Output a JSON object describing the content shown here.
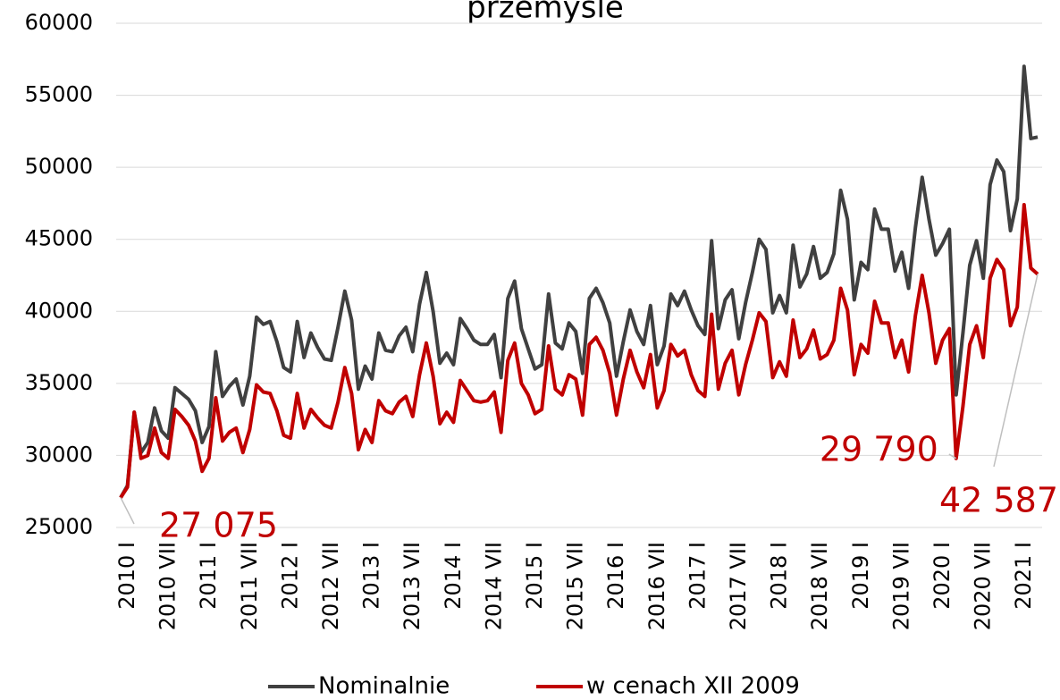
{
  "chart_data": {
    "type": "line",
    "title": "przemyśle",
    "categories": [
      "2010 I",
      null,
      null,
      null,
      null,
      null,
      "2010 VII",
      null,
      null,
      null,
      null,
      null,
      "2011 I",
      null,
      null,
      null,
      null,
      null,
      "2011 VII",
      null,
      null,
      null,
      null,
      null,
      "2012 I",
      null,
      null,
      null,
      null,
      null,
      "2012 VII",
      null,
      null,
      null,
      null,
      null,
      "2013 I",
      null,
      null,
      null,
      null,
      null,
      "2013 VII",
      null,
      null,
      null,
      null,
      null,
      "2014 I",
      null,
      null,
      null,
      null,
      null,
      "2014 VII",
      null,
      null,
      null,
      null,
      null,
      "2015 I",
      null,
      null,
      null,
      null,
      null,
      "2015 VII",
      null,
      null,
      null,
      null,
      null,
      "2016 I",
      null,
      null,
      null,
      null,
      null,
      "2016 VII",
      null,
      null,
      null,
      null,
      null,
      "2017 I",
      null,
      null,
      null,
      null,
      null,
      "2017 VII",
      null,
      null,
      null,
      null,
      null,
      "2018 I",
      null,
      null,
      null,
      null,
      null,
      "2018 VII",
      null,
      null,
      null,
      null,
      null,
      "2019 I",
      null,
      null,
      null,
      null,
      null,
      "2019 VII",
      null,
      null,
      null,
      null,
      null,
      "2020 I",
      null,
      null,
      null,
      null,
      null,
      "2020 VII",
      null,
      null,
      null,
      null,
      null,
      "2021 I",
      null,
      null,
      null
    ],
    "series": [
      {
        "name": "Nominalnie",
        "color": "#404040",
        "values": [
          27075,
          27900,
          33000,
          30200,
          30900,
          33300,
          31700,
          31200,
          34700,
          34300,
          33900,
          33100,
          30900,
          32000,
          37200,
          34100,
          34800,
          35300,
          33500,
          35500,
          39600,
          39100,
          39300,
          37900,
          36100,
          35800,
          39300,
          36800,
          38500,
          37500,
          36700,
          36600,
          38900,
          41400,
          39400,
          34600,
          36200,
          35300,
          38500,
          37300,
          37200,
          38300,
          38900,
          37200,
          40500,
          42700,
          40000,
          36400,
          37100,
          36300,
          39500,
          38800,
          38000,
          37700,
          37700,
          38400,
          35400,
          40900,
          42100,
          38800,
          37400,
          36000,
          36300,
          41200,
          37800,
          37400,
          39200,
          38600,
          35700,
          40900,
          41600,
          40600,
          39200,
          35500,
          37900,
          40100,
          38600,
          37700,
          40400,
          36300,
          37600,
          41200,
          40400,
          41400,
          40100,
          39000,
          38400,
          44900,
          38800,
          40800,
          41500,
          38100,
          40600,
          42700,
          45000,
          44300,
          39900,
          41100,
          39900,
          44600,
          41700,
          42600,
          44500,
          42300,
          42700,
          44000,
          48400,
          46400,
          40800,
          43400,
          42900,
          47100,
          45700,
          45700,
          42800,
          44100,
          41600,
          45800,
          49300,
          46400,
          43900,
          44700,
          45700,
          34200,
          38500,
          43200,
          44900,
          42300,
          48800,
          50500,
          49700,
          45600,
          47800,
          57000,
          52000,
          52100
        ]
      },
      {
        "name": "w cenach XII 2009",
        "color": "#c00000",
        "values": [
          27075,
          27800,
          33000,
          29800,
          30000,
          31900,
          30200,
          29800,
          33200,
          32700,
          32100,
          31000,
          28900,
          29800,
          34000,
          31000,
          31600,
          31900,
          30200,
          31800,
          34900,
          34400,
          34300,
          33100,
          31400,
          31200,
          34300,
          31900,
          33200,
          32600,
          32100,
          31900,
          33700,
          36100,
          34300,
          30400,
          31800,
          30900,
          33800,
          33100,
          32900,
          33700,
          34100,
          32700,
          35600,
          37800,
          35500,
          32200,
          33000,
          32300,
          35200,
          34500,
          33800,
          33700,
          33800,
          34400,
          31600,
          36600,
          37800,
          35000,
          34200,
          32900,
          33200,
          37600,
          34600,
          34200,
          35600,
          35300,
          32800,
          37700,
          38200,
          37300,
          35700,
          32800,
          35300,
          37300,
          35800,
          34700,
          37000,
          33300,
          34500,
          37700,
          36900,
          37300,
          35600,
          34500,
          34100,
          39800,
          34600,
          36400,
          37300,
          34200,
          36300,
          38000,
          39900,
          39300,
          35400,
          36500,
          35500,
          39400,
          36800,
          37400,
          38700,
          36700,
          37000,
          38000,
          41600,
          40100,
          35600,
          37700,
          37100,
          40700,
          39200,
          39200,
          36800,
          38000,
          35800,
          39700,
          42500,
          39900,
          36400,
          38000,
          38800,
          29790,
          33400,
          37700,
          39000,
          36800,
          42300,
          43600,
          42900,
          39000,
          40300,
          47400,
          43000,
          42587
        ],
        "value_labels": [
          "27 075",
          null,
          null,
          null,
          null,
          null,
          null,
          null,
          null,
          null,
          null,
          null,
          null,
          null,
          null,
          null,
          null,
          null,
          null,
          null,
          null,
          null,
          null,
          null,
          null,
          null,
          null,
          null,
          null,
          null,
          null,
          null,
          null,
          null,
          null,
          null,
          null,
          null,
          null,
          null,
          null,
          null,
          null,
          null,
          null,
          null,
          null,
          null,
          null,
          null,
          null,
          null,
          null,
          null,
          null,
          null,
          null,
          null,
          null,
          null,
          null,
          null,
          null,
          null,
          null,
          null,
          null,
          null,
          null,
          null,
          null,
          null,
          null,
          null,
          null,
          null,
          null,
          null,
          null,
          null,
          null,
          null,
          null,
          null,
          null,
          null,
          null,
          null,
          null,
          null,
          null,
          null,
          null,
          null,
          null,
          null,
          null,
          null,
          null,
          null,
          null,
          null,
          null,
          null,
          null,
          null,
          null,
          null,
          null,
          null,
          null,
          null,
          null,
          null,
          null,
          null,
          null,
          null,
          null,
          null,
          null,
          null,
          null,
          "29 790",
          null,
          null,
          null,
          null,
          null,
          null,
          null,
          null,
          null,
          null,
          null,
          "42 587"
        ]
      }
    ],
    "ylim": [
      25000,
      60000
    ],
    "yticks": [
      25000,
      30000,
      35000,
      40000,
      45000,
      50000,
      55000,
      60000
    ],
    "grid": true,
    "legend": "bottom"
  }
}
